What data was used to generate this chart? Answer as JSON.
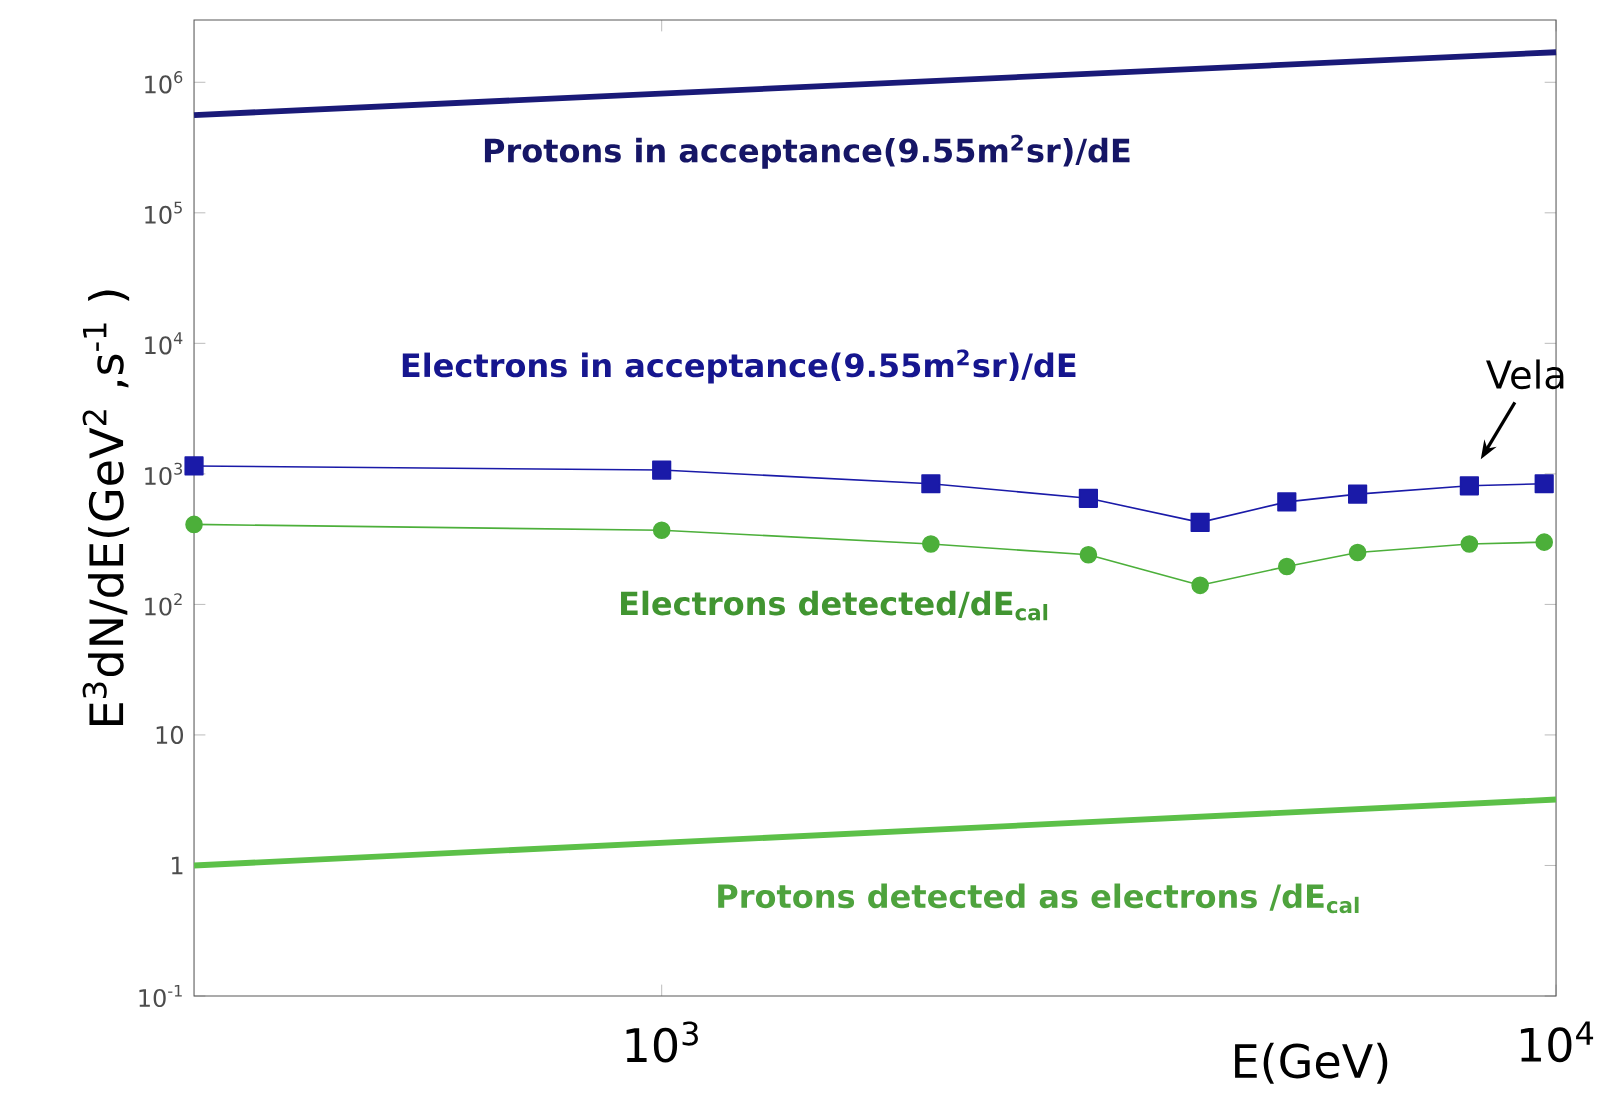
{
  "chart_data": {
    "type": "line",
    "xlabel": "E(GeV)",
    "ylabel": "E$^{3}$dN/dE(GeV$^{2}$ ,s$^{-1}$ )",
    "log": "xy",
    "grid": false,
    "legend": false,
    "xlim": [
      300,
      10000
    ],
    "ylim": [
      0.1,
      3000000
    ],
    "xticks": [
      {
        "value": 1000,
        "label": "10$^{3}$"
      },
      {
        "value": 10000,
        "label": "10$^{4}$"
      }
    ],
    "yticks": [
      {
        "value": 0.1,
        "label": "10$^{-1}$"
      },
      1,
      10,
      {
        "value": 100,
        "label": "10$^{2}$"
      },
      {
        "value": 1000,
        "label": "10$^{3}$"
      },
      {
        "value": 10000,
        "label": "10$^{4}$"
      },
      {
        "value": 100000,
        "label": "10$^{5}$"
      },
      {
        "value": 1000000,
        "label": "10$^{6}$"
      }
    ],
    "series": [
      {
        "name": "Protons in acceptance(9.55m$^{2}$sr)/dE",
        "color": "#1a1a78",
        "marker": "none",
        "x": [
          300,
          10000
        ],
        "values": [
          560000,
          1700000
        ]
      },
      {
        "name": "Electrons in acceptance(9.55m$^{2}$sr)/dE",
        "color": "#1a1aa8",
        "marker": "square",
        "x": [
          300,
          1000,
          2000,
          3000,
          4000,
          5000,
          6000,
          8000,
          9700
        ],
        "values": [
          1150,
          1070,
          840,
          650,
          425,
          610,
          700,
          810,
          840
        ]
      },
      {
        "name": "Electrons detected/dE$_{cal}$",
        "color": "#4caf3a",
        "marker": "circle",
        "x": [
          300,
          1000,
          2000,
          3000,
          4000,
          5000,
          6000,
          8000,
          9700
        ],
        "values": [
          410,
          370,
          290,
          240,
          140,
          195,
          250,
          290,
          300
        ]
      },
      {
        "name": "Protons detected as electrons /dE$_{cal}$",
        "color": "#5cc048",
        "marker": "none",
        "x": [
          300,
          10000
        ],
        "values": [
          1.0,
          3.2
        ]
      }
    ],
    "annotations": [
      {
        "text": "Vela",
        "x": 8000,
        "y": 810
      }
    ]
  }
}
